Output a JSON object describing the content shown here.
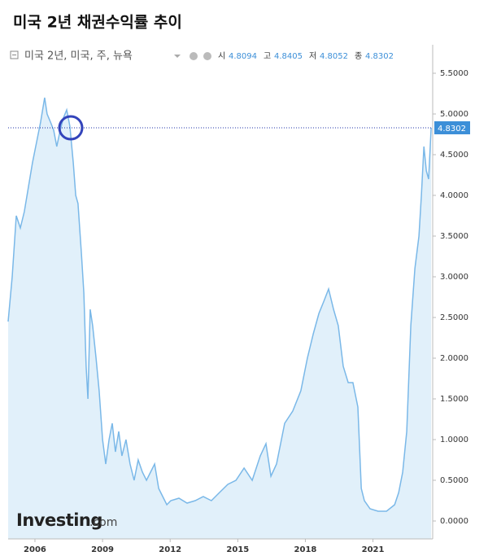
{
  "chart_data": {
    "type": "area",
    "title": "미국 2년 채권수익률 추이",
    "series": [
      {
        "name": "미국 2년, 미국, 주, 뉴욕",
        "color": "#7ab8e8",
        "fill": "#e1f0fa",
        "x": [
          2004.81,
          2004.99,
          2005.17,
          2005.35,
          2005.53,
          2005.71,
          2005.89,
          2006.07,
          2006.25,
          2006.43,
          2006.54,
          2006.69,
          2006.83,
          2006.97,
          2007.12,
          2007.26,
          2007.41,
          2007.55,
          2007.7,
          2007.81,
          2007.91,
          2008.06,
          2008.17,
          2008.27,
          2008.35,
          2008.45,
          2008.56,
          2008.71,
          2008.85,
          2009.0,
          2009.14,
          2009.29,
          2009.43,
          2009.57,
          2009.72,
          2009.86,
          2010.04,
          2010.22,
          2010.4,
          2010.58,
          2010.77,
          2010.95,
          2011.13,
          2011.31,
          2011.49,
          2011.67,
          2011.85,
          2012.03,
          2012.39,
          2012.75,
          2013.11,
          2013.47,
          2013.83,
          2014.19,
          2014.56,
          2014.92,
          2015.28,
          2015.64,
          2016.0,
          2016.25,
          2016.47,
          2016.72,
          2017.08,
          2017.44,
          2017.8,
          2018.09,
          2018.35,
          2018.6,
          2018.82,
          2019.03,
          2019.25,
          2019.46,
          2019.68,
          2019.9,
          2020.11,
          2020.33,
          2020.48,
          2020.62,
          2020.87,
          2021.23,
          2021.6,
          2021.96,
          2022.14,
          2022.32,
          2022.5,
          2022.68,
          2022.86,
          2023.04,
          2023.15,
          2023.26,
          2023.37,
          2023.47,
          2023.58
        ],
        "values": [
          2.45,
          3.0,
          3.75,
          3.6,
          3.8,
          4.1,
          4.4,
          4.65,
          4.9,
          5.2,
          5.0,
          4.9,
          4.8,
          4.6,
          4.8,
          4.95,
          5.05,
          4.85,
          4.4,
          4.0,
          3.9,
          3.3,
          2.8,
          1.9,
          1.5,
          2.6,
          2.4,
          2.0,
          1.6,
          1.0,
          0.7,
          1.0,
          1.2,
          0.85,
          1.1,
          0.8,
          1.0,
          0.7,
          0.5,
          0.75,
          0.6,
          0.5,
          0.6,
          0.7,
          0.4,
          0.3,
          0.2,
          0.25,
          0.28,
          0.22,
          0.25,
          0.3,
          0.25,
          0.35,
          0.45,
          0.5,
          0.65,
          0.5,
          0.8,
          0.95,
          0.55,
          0.7,
          1.2,
          1.35,
          1.6,
          2.0,
          2.3,
          2.55,
          2.7,
          2.85,
          2.6,
          2.4,
          1.9,
          1.7,
          1.7,
          1.4,
          0.4,
          0.25,
          0.15,
          0.12,
          0.12,
          0.2,
          0.35,
          0.6,
          1.1,
          2.4,
          3.1,
          3.5,
          4.0,
          4.6,
          4.3,
          4.2,
          4.8302
        ]
      }
    ],
    "last_value": 4.8302,
    "ohlc": {
      "labels": [
        "시",
        "고",
        "저",
        "종"
      ],
      "values": [
        4.8094,
        4.8405,
        4.8052,
        4.8302
      ]
    },
    "watermark": [
      "Investing",
      ".com"
    ],
    "xlim": [
      2004.81,
      2023.65
    ],
    "xticks": [
      2006,
      2009,
      2012,
      2015,
      2018,
      2021
    ],
    "ylim": [
      -0.22,
      5.85
    ],
    "yticks": [
      {
        "value": 0,
        "label": "0.0000"
      },
      {
        "value": 0.5,
        "label": "0.5000"
      },
      {
        "value": 1,
        "label": "1.0000"
      },
      {
        "value": 1.5,
        "label": "1.5000"
      },
      {
        "value": 2,
        "label": "2.0000"
      },
      {
        "value": 2.5,
        "label": "2.5000"
      },
      {
        "value": 3,
        "label": "3.0000"
      },
      {
        "value": 3.5,
        "label": "3.5000"
      },
      {
        "value": 4,
        "label": "4.0000"
      },
      {
        "value": 4.5,
        "label": "4.5000"
      },
      {
        "value": 5,
        "label": "5.0000"
      },
      {
        "value": 5.5,
        "label": "5.5000"
      }
    ],
    "grid": false
  }
}
